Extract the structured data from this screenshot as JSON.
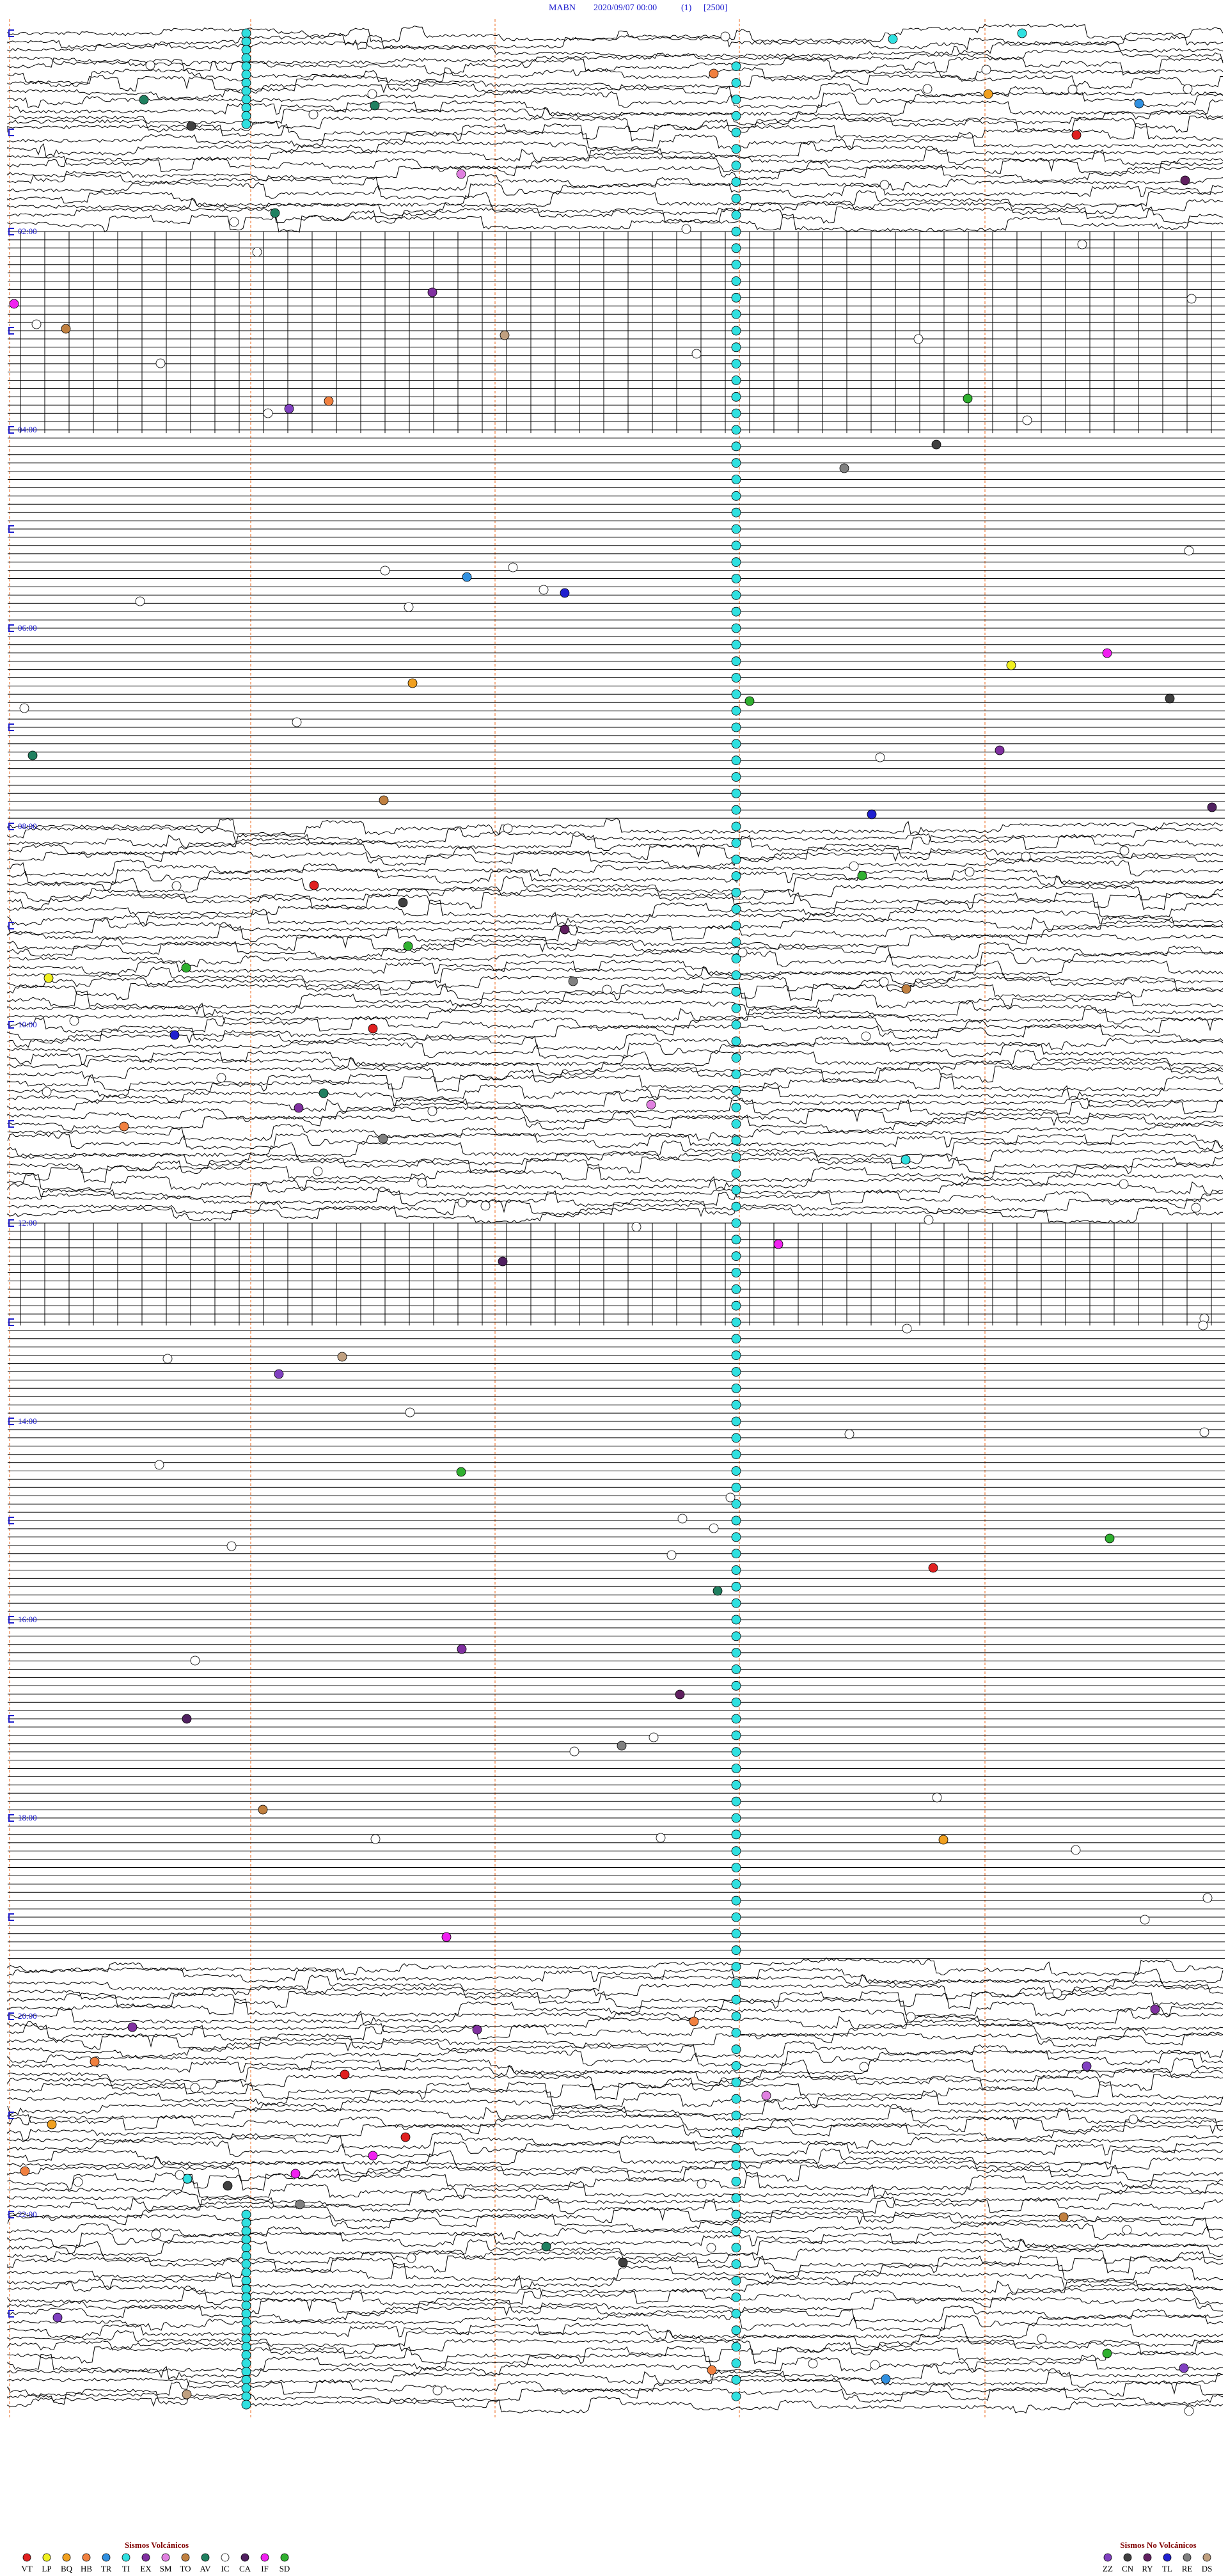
{
  "header": {
    "station": "MABN",
    "datetime": "2020/09/07 00:00",
    "channel": "(1)",
    "scale": "[2500]"
  },
  "time_labels": [
    "02:00",
    "04:00",
    "06:00",
    "08:00",
    "10:00",
    "12:00",
    "14:00",
    "16:00",
    "18:00",
    "20:00",
    "22:00"
  ],
  "legend": {
    "volcanic": {
      "title": "Sismos Volcánicos",
      "items": [
        {
          "code": "VT",
          "color": "#e02020"
        },
        {
          "code": "LP",
          "color": "#f0f020"
        },
        {
          "code": "BQ",
          "color": "#f0a020"
        },
        {
          "code": "HB",
          "color": "#f08040"
        },
        {
          "code": "TR",
          "color": "#3090e0"
        },
        {
          "code": "TI",
          "color": "#30e0e0"
        },
        {
          "code": "EX",
          "color": "#8030a0"
        },
        {
          "code": "SM",
          "color": "#e080e0"
        },
        {
          "code": "TO",
          "color": "#c08040"
        },
        {
          "code": "AV",
          "color": "#208060"
        },
        {
          "code": "IC",
          "color": "#ffffff"
        },
        {
          "code": "CA",
          "color": "#502060"
        },
        {
          "code": "IF",
          "color": "#f020f0"
        },
        {
          "code": "SD",
          "color": "#30b030"
        }
      ]
    },
    "non_volcanic": {
      "title": "Sismos No Volcánicos",
      "items": [
        {
          "code": "ZZ",
          "color": "#8040c0"
        },
        {
          "code": "CN",
          "color": "#404040"
        },
        {
          "code": "RY",
          "color": "#602060"
        },
        {
          "code": "TL",
          "color": "#2020d0"
        },
        {
          "code": "RE",
          "color": "#808080"
        },
        {
          "code": "DS",
          "color": "#c0a080"
        }
      ]
    }
  }
}
